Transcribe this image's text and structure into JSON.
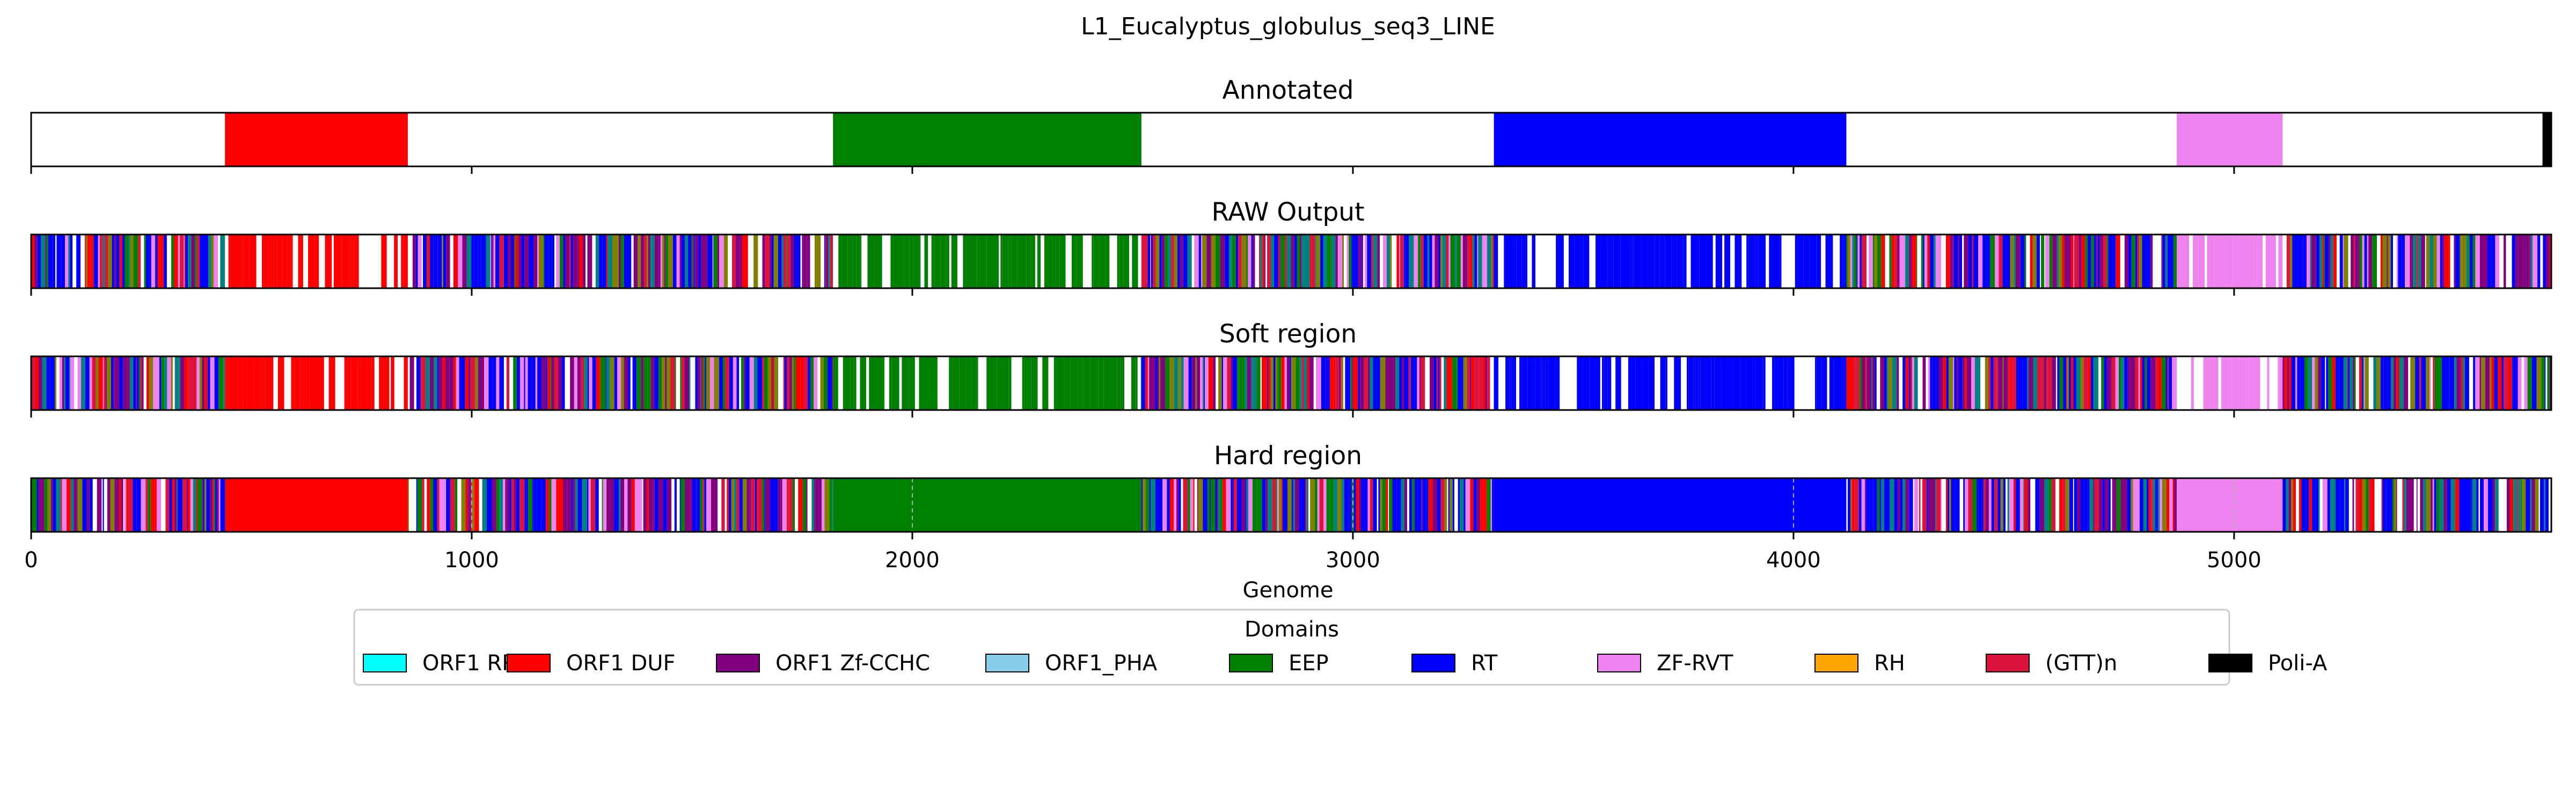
{
  "chart_data": {
    "type": "bar",
    "title": "L1_Eucalyptus_globulus_seq3_LINE",
    "xlabel": "Genome",
    "xlim": [
      0,
      5720
    ],
    "xticks": [
      "0",
      "1000",
      "2000",
      "3000",
      "4000",
      "5000"
    ],
    "xtick_values": [
      0,
      1000,
      2000,
      3000,
      4000,
      5000
    ],
    "grid": "dashed vertical lines on Hard region only",
    "legend": {
      "title": "Domains",
      "placement": "bottom-center",
      "entries": [
        {
          "name": "ORF1 RRM",
          "color": "#00ffff"
        },
        {
          "name": "ORF1 DUF",
          "color": "#ff0000"
        },
        {
          "name": "ORF1 Zf-CCHC",
          "color": "#800080"
        },
        {
          "name": "ORF1_PHA",
          "color": "#87ceeb"
        },
        {
          "name": "EEP",
          "color": "#008000"
        },
        {
          "name": "RT",
          "color": "#0000ff"
        },
        {
          "name": "ZF-RVT",
          "color": "#ee82ee"
        },
        {
          "name": "RH",
          "color": "#ffa500"
        },
        {
          "name": "(GTT)n",
          "color": "#dc143c"
        },
        {
          "name": "Poli-A",
          "color": "#000000"
        }
      ]
    },
    "panels": [
      {
        "title": "Annotated",
        "segments": [
          {
            "domain": "ORF1 DUF",
            "start": 440,
            "end": 855
          },
          {
            "domain": "EEP",
            "start": 1820,
            "end": 2520
          },
          {
            "domain": "RT",
            "start": 3320,
            "end": 4120
          },
          {
            "domain": "ZF-RVT",
            "start": 4870,
            "end": 5110
          },
          {
            "domain": "Poli-A",
            "start": 5700,
            "end": 5720
          }
        ]
      },
      {
        "title": "RAW Output",
        "segments": [
          {
            "domain": "mixed",
            "start": 0,
            "end": 440
          },
          {
            "domain": "ORF1 DUF",
            "start": 440,
            "end": 855
          },
          {
            "domain": "mixed",
            "start": 855,
            "end": 1820
          },
          {
            "domain": "EEP",
            "start": 1820,
            "end": 2520
          },
          {
            "domain": "mixed",
            "start": 2520,
            "end": 3320
          },
          {
            "domain": "RT",
            "start": 3320,
            "end": 4120
          },
          {
            "domain": "mixed",
            "start": 4120,
            "end": 4870
          },
          {
            "domain": "ZF-RVT",
            "start": 4870,
            "end": 5110
          },
          {
            "domain": "mixed",
            "start": 5110,
            "end": 5720
          }
        ]
      },
      {
        "title": "Soft region",
        "segments": [
          {
            "domain": "mixed",
            "start": 0,
            "end": 440
          },
          {
            "domain": "ORF1 DUF",
            "start": 440,
            "end": 855
          },
          {
            "domain": "mixed",
            "start": 855,
            "end": 1820
          },
          {
            "domain": "EEP",
            "start": 1820,
            "end": 2520
          },
          {
            "domain": "mixed",
            "start": 2520,
            "end": 3320
          },
          {
            "domain": "RT",
            "start": 3320,
            "end": 4120
          },
          {
            "domain": "mixed",
            "start": 4120,
            "end": 4870
          },
          {
            "domain": "ZF-RVT",
            "start": 4870,
            "end": 5110
          },
          {
            "domain": "mixed",
            "start": 5110,
            "end": 5720
          }
        ]
      },
      {
        "title": "Hard region",
        "segments": [
          {
            "domain": "mixed",
            "start": 0,
            "end": 440
          },
          {
            "domain": "ORF1 DUF",
            "start": 440,
            "end": 855
          },
          {
            "domain": "mixed",
            "start": 855,
            "end": 1820
          },
          {
            "domain": "EEP",
            "start": 1820,
            "end": 2520
          },
          {
            "domain": "mixed",
            "start": 2520,
            "end": 3320
          },
          {
            "domain": "RT",
            "start": 3320,
            "end": 4120
          },
          {
            "domain": "mixed",
            "start": 4120,
            "end": 4870
          },
          {
            "domain": "ZF-RVT",
            "start": 4870,
            "end": 5110
          },
          {
            "domain": "mixed",
            "start": 5110,
            "end": 5720
          }
        ]
      }
    ]
  }
}
